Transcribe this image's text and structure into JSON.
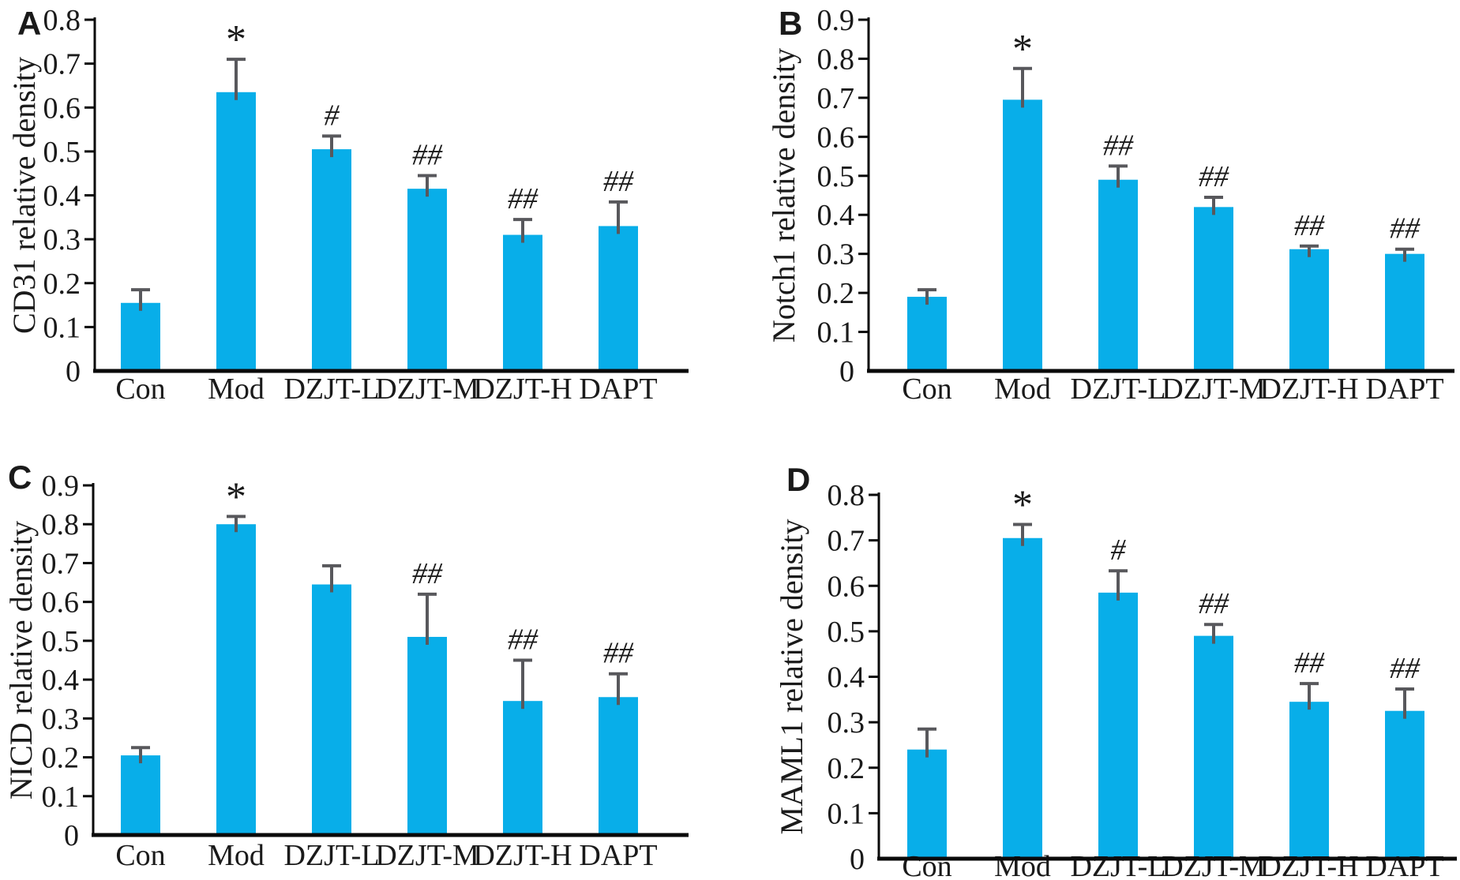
{
  "figure": {
    "background": "#ffffff",
    "colors": {
      "bar": "#08AEE9",
      "error_bar": "#58585C",
      "axis": "#0a0a0a",
      "text": "#1a1a1a"
    },
    "significance_symbols": {
      "vs_control": "*",
      "vs_model_single": "#",
      "vs_model_double": "##"
    }
  },
  "chart_data": [
    {
      "type": "bar",
      "panel_letter": "A",
      "title": "",
      "xlabel": "",
      "ylabel": "CD31 relative density",
      "categories": [
        "Con",
        "Mod",
        "DZJT-L",
        "DZJT-M",
        "DZJT-H",
        "DAPT"
      ],
      "values": [
        0.155,
        0.635,
        0.505,
        0.415,
        0.31,
        0.33
      ],
      "errors": [
        0.03,
        0.075,
        0.03,
        0.03,
        0.035,
        0.055
      ],
      "significance": [
        "",
        "*",
        "#",
        "##",
        "##",
        "##"
      ],
      "ylim": [
        0,
        0.8
      ],
      "ytick_step": 0.1,
      "grid": false,
      "legend": "none",
      "bar_color": "#08AEE9"
    },
    {
      "type": "bar",
      "panel_letter": "B",
      "title": "",
      "xlabel": "",
      "ylabel": "Notch1 relative density",
      "categories": [
        "Con",
        "Mod",
        "DZJT-L",
        "DZJT-M",
        "DZJT-H",
        "DAPT"
      ],
      "values": [
        0.19,
        0.695,
        0.49,
        0.42,
        0.312,
        0.3
      ],
      "errors": [
        0.018,
        0.08,
        0.035,
        0.025,
        0.008,
        0.012
      ],
      "significance": [
        "",
        "*",
        "##",
        "##",
        "##",
        "##"
      ],
      "ylim": [
        0,
        0.9
      ],
      "ytick_step": 0.1,
      "grid": false,
      "legend": "none",
      "bar_color": "#08AEE9"
    },
    {
      "type": "bar",
      "panel_letter": "C",
      "title": "",
      "xlabel": "",
      "ylabel": "NICD relative density",
      "categories": [
        "Con",
        "Mod",
        "DZJT-L",
        "DZJT-M",
        "DZJT-H",
        "DAPT"
      ],
      "values": [
        0.205,
        0.8,
        0.645,
        0.51,
        0.345,
        0.355
      ],
      "errors": [
        0.02,
        0.02,
        0.048,
        0.11,
        0.105,
        0.06
      ],
      "significance": [
        "",
        "*",
        "",
        "##",
        "##",
        "##"
      ],
      "ylim": [
        0,
        0.9
      ],
      "ytick_step": 0.1,
      "grid": false,
      "legend": "none",
      "bar_color": "#08AEE9"
    },
    {
      "type": "bar",
      "panel_letter": "D",
      "title": "",
      "xlabel": "",
      "ylabel": "MAML1 relative density",
      "categories": [
        "Con",
        "Mod",
        "DZJT-L",
        "DZJT-M",
        "DZJT-H",
        "DAPT"
      ],
      "values": [
        0.24,
        0.705,
        0.585,
        0.49,
        0.345,
        0.325
      ],
      "errors": [
        0.045,
        0.03,
        0.048,
        0.025,
        0.04,
        0.048
      ],
      "significance": [
        "",
        "*",
        "#",
        "##",
        "##",
        "##"
      ],
      "ylim": [
        0,
        0.8
      ],
      "ytick_step": 0.1,
      "grid": false,
      "legend": "none",
      "bar_color": "#08AEE9"
    }
  ]
}
